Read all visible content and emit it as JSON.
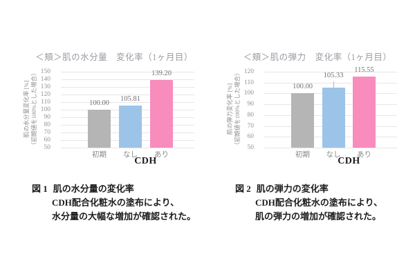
{
  "page": {
    "background": "#ffffff"
  },
  "colors": {
    "bar_gray": "#b5b5b5",
    "bar_blue": "#9cc3e8",
    "bar_pink": "#f78cbd",
    "gridline": "#e6e6e9",
    "tick_text": "#939398",
    "title_text": "#9a9aa2",
    "value_text": "#707074",
    "caption_text": "#1c1c1c"
  },
  "chart_data": [
    {
      "type": "bar",
      "title": "＜頬＞肌の水分量　変化率（1ヶ月目）",
      "categories": [
        "初期",
        "なし",
        "あり"
      ],
      "values": [
        100.0,
        105.81,
        139.2
      ],
      "value_labels": [
        "100.00",
        "105.81",
        "139.20"
      ],
      "bar_colors": [
        "#b5b5b5",
        "#9cc3e8",
        "#f78cbd"
      ],
      "ylabel_line1": "肌の水分量変化率 [%]",
      "ylabel_line2": "（初期値を100%とした場合）",
      "ylim": [
        50,
        150
      ],
      "ytick_step": 10,
      "grid": true,
      "legend": "none",
      "group_label": "CDH",
      "leader_lines": [
        false,
        false,
        false
      ]
    },
    {
      "type": "bar",
      "title": "＜頬＞肌の弾力　変化率（1ヶ月目）",
      "categories": [
        "初期",
        "なし",
        "あり"
      ],
      "values": [
        100.0,
        105.33,
        115.55
      ],
      "value_labels": [
        "100.00",
        "105.33",
        "115.55"
      ],
      "bar_colors": [
        "#b5b5b5",
        "#9cc3e8",
        "#f78cbd"
      ],
      "ylabel_line1": "肌の弾力変化率 [%]",
      "ylabel_line2": "（初期値を100%とした場合）",
      "ylim": [
        50,
        120
      ],
      "ytick_step": 10,
      "grid": true,
      "legend": "none",
      "group_label": "CDH",
      "leader_lines": [
        false,
        true,
        false
      ]
    }
  ],
  "captions": [
    {
      "label": "図 1",
      "lines": [
        "肌の水分量の変化率",
        "CDH配合化粧水の塗布により、",
        "水分量の大幅な増加が確認された。"
      ]
    },
    {
      "label": "図 2",
      "lines": [
        "肌の弾力の変化率",
        "CDH配合化粧水の塗布により、",
        "肌の弾力の増加が確認された。"
      ]
    }
  ]
}
